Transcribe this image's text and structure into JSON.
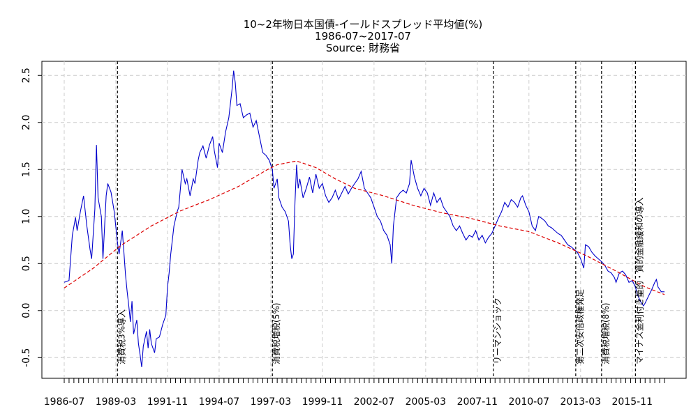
{
  "chart_data": {
    "type": "line",
    "title_lines": [
      "10~2年物日本国債-イールドスプレッド平均値(%)",
      "1986-07~2017-07",
      "Source: 財務省"
    ],
    "xlabel": "",
    "ylabel": "",
    "x_range": [
      "1986-07",
      "2017-07"
    ],
    "x_tick_labels": [
      "1986-07",
      "1989-03",
      "1991-11",
      "1994-07",
      "1997-03",
      "1999-11",
      "2002-07",
      "2005-03",
      "2007-11",
      "2010-07",
      "2013-03",
      "2015-11"
    ],
    "y_ticks": [
      -0.5,
      0.0,
      0.5,
      1.0,
      1.5,
      2.0,
      2.5
    ],
    "y_tick_labels": [
      "-0.5",
      "0.0",
      "0.5",
      "1.0",
      "1.5",
      "2.0",
      "2.5"
    ],
    "ylim": [
      -0.72,
      2.65
    ],
    "grid": true,
    "colors": {
      "series": "#0000cc",
      "trend": "#dd0000",
      "grid": "#cccccc",
      "events": "#000000"
    },
    "series": [
      {
        "style": "solid",
        "points": [
          [
            "1986-07",
            0.3
          ],
          [
            "1986-10",
            0.32
          ],
          [
            "1986-12",
            0.8
          ],
          [
            "1987-02",
            0.99
          ],
          [
            "1987-03",
            0.85
          ],
          [
            "1987-05",
            1.05
          ],
          [
            "1987-07",
            1.22
          ],
          [
            "1987-09",
            0.9
          ],
          [
            "1987-11",
            0.65
          ],
          [
            "1987-12",
            0.55
          ],
          [
            "1988-02",
            1.08
          ],
          [
            "1988-03",
            1.76
          ],
          [
            "1988-04",
            1.2
          ],
          [
            "1988-06",
            1.0
          ],
          [
            "1988-07",
            0.55
          ],
          [
            "1988-09",
            1.22
          ],
          [
            "1988-10",
            1.35
          ],
          [
            "1988-12",
            1.26
          ],
          [
            "1989-02",
            1.05
          ],
          [
            "1989-04",
            0.72
          ],
          [
            "1989-05",
            0.6
          ],
          [
            "1989-07",
            0.85
          ],
          [
            "1989-08",
            0.62
          ],
          [
            "1989-09",
            0.38
          ],
          [
            "1989-10",
            0.2
          ],
          [
            "1989-11",
            0.05
          ],
          [
            "1989-12",
            -0.12
          ],
          [
            "1990-01",
            0.1
          ],
          [
            "1990-02",
            -0.25
          ],
          [
            "1990-04",
            -0.1
          ],
          [
            "1990-05",
            -0.35
          ],
          [
            "1990-06",
            -0.47
          ],
          [
            "1990-07",
            -0.6
          ],
          [
            "1990-08",
            -0.38
          ],
          [
            "1990-10",
            -0.22
          ],
          [
            "1990-11",
            -0.4
          ],
          [
            "1990-12",
            -0.2
          ],
          [
            "1991-01",
            -0.35
          ],
          [
            "1991-03",
            -0.45
          ],
          [
            "1991-04",
            -0.3
          ],
          [
            "1991-06",
            -0.28
          ],
          [
            "1991-08",
            -0.15
          ],
          [
            "1991-10",
            -0.05
          ],
          [
            "1991-11",
            0.25
          ],
          [
            "1991-12",
            0.4
          ],
          [
            "1992-01",
            0.6
          ],
          [
            "1992-03",
            0.9
          ],
          [
            "1992-05",
            1.05
          ],
          [
            "1992-06",
            1.1
          ],
          [
            "1992-07",
            1.3
          ],
          [
            "1992-08",
            1.5
          ],
          [
            "1992-10",
            1.35
          ],
          [
            "1992-11",
            1.4
          ],
          [
            "1993-01",
            1.22
          ],
          [
            "1993-03",
            1.4
          ],
          [
            "1993-04",
            1.35
          ],
          [
            "1993-06",
            1.6
          ],
          [
            "1993-07",
            1.68
          ],
          [
            "1993-09",
            1.75
          ],
          [
            "1993-11",
            1.62
          ],
          [
            "1994-01",
            1.76
          ],
          [
            "1994-03",
            1.85
          ],
          [
            "1994-04",
            1.7
          ],
          [
            "1994-06",
            1.52
          ],
          [
            "1994-07",
            1.78
          ],
          [
            "1994-09",
            1.68
          ],
          [
            "1994-11",
            1.9
          ],
          [
            "1995-01",
            2.05
          ],
          [
            "1995-03",
            2.35
          ],
          [
            "1995-04",
            2.55
          ],
          [
            "1995-05",
            2.42
          ],
          [
            "1995-06",
            2.18
          ],
          [
            "1995-08",
            2.2
          ],
          [
            "1995-10",
            2.05
          ],
          [
            "1995-12",
            2.08
          ],
          [
            "1996-02",
            2.1
          ],
          [
            "1996-04",
            1.95
          ],
          [
            "1996-06",
            2.02
          ],
          [
            "1996-08",
            1.85
          ],
          [
            "1996-10",
            1.68
          ],
          [
            "1996-12",
            1.65
          ],
          [
            "1997-02",
            1.6
          ],
          [
            "1997-04",
            1.5
          ],
          [
            "1997-05",
            1.3
          ],
          [
            "1997-07",
            1.4
          ],
          [
            "1997-08",
            1.2
          ],
          [
            "1997-10",
            1.1
          ],
          [
            "1997-12",
            1.05
          ],
          [
            "1998-02",
            0.95
          ],
          [
            "1998-03",
            0.7
          ],
          [
            "1998-04",
            0.55
          ],
          [
            "1998-05",
            0.6
          ],
          [
            "1998-06",
            1.15
          ],
          [
            "1998-07",
            1.55
          ],
          [
            "1998-08",
            1.3
          ],
          [
            "1998-09",
            1.4
          ],
          [
            "1998-11",
            1.2
          ],
          [
            "1999-01",
            1.3
          ],
          [
            "1999-03",
            1.42
          ],
          [
            "1999-05",
            1.25
          ],
          [
            "1999-07",
            1.45
          ],
          [
            "1999-09",
            1.3
          ],
          [
            "1999-11",
            1.35
          ],
          [
            "2000-01",
            1.22
          ],
          [
            "2000-03",
            1.15
          ],
          [
            "2000-05",
            1.2
          ],
          [
            "2000-07",
            1.28
          ],
          [
            "2000-09",
            1.18
          ],
          [
            "2000-11",
            1.25
          ],
          [
            "2001-01",
            1.32
          ],
          [
            "2001-03",
            1.24
          ],
          [
            "2001-05",
            1.3
          ],
          [
            "2001-07",
            1.35
          ],
          [
            "2001-09",
            1.4
          ],
          [
            "2001-11",
            1.48
          ],
          [
            "2002-01",
            1.3
          ],
          [
            "2002-03",
            1.25
          ],
          [
            "2002-05",
            1.2
          ],
          [
            "2002-07",
            1.1
          ],
          [
            "2002-09",
            1.0
          ],
          [
            "2002-11",
            0.95
          ],
          [
            "2003-01",
            0.85
          ],
          [
            "2003-03",
            0.8
          ],
          [
            "2003-05",
            0.7
          ],
          [
            "2003-06",
            0.5
          ],
          [
            "2003-07",
            0.9
          ],
          [
            "2003-09",
            1.2
          ],
          [
            "2003-11",
            1.25
          ],
          [
            "2004-01",
            1.28
          ],
          [
            "2004-03",
            1.25
          ],
          [
            "2004-05",
            1.35
          ],
          [
            "2004-06",
            1.6
          ],
          [
            "2004-08",
            1.42
          ],
          [
            "2004-10",
            1.3
          ],
          [
            "2004-12",
            1.22
          ],
          [
            "2005-02",
            1.3
          ],
          [
            "2005-04",
            1.25
          ],
          [
            "2005-06",
            1.12
          ],
          [
            "2005-08",
            1.25
          ],
          [
            "2005-10",
            1.15
          ],
          [
            "2005-12",
            1.2
          ],
          [
            "2006-02",
            1.1
          ],
          [
            "2006-04",
            1.05
          ],
          [
            "2006-06",
            1.0
          ],
          [
            "2006-08",
            0.9
          ],
          [
            "2006-10",
            0.85
          ],
          [
            "2006-12",
            0.9
          ],
          [
            "2007-02",
            0.82
          ],
          [
            "2007-04",
            0.75
          ],
          [
            "2007-06",
            0.8
          ],
          [
            "2007-08",
            0.78
          ],
          [
            "2007-10",
            0.85
          ],
          [
            "2007-12",
            0.75
          ],
          [
            "2008-02",
            0.8
          ],
          [
            "2008-04",
            0.72
          ],
          [
            "2008-06",
            0.78
          ],
          [
            "2008-08",
            0.82
          ],
          [
            "2008-10",
            0.9
          ],
          [
            "2008-12",
            0.98
          ],
          [
            "2009-02",
            1.05
          ],
          [
            "2009-04",
            1.15
          ],
          [
            "2009-06",
            1.1
          ],
          [
            "2009-08",
            1.18
          ],
          [
            "2009-10",
            1.15
          ],
          [
            "2009-12",
            1.1
          ],
          [
            "2010-02",
            1.2
          ],
          [
            "2010-03",
            1.22
          ],
          [
            "2010-05",
            1.12
          ],
          [
            "2010-07",
            1.05
          ],
          [
            "2010-09",
            0.9
          ],
          [
            "2010-11",
            0.85
          ],
          [
            "2011-01",
            1.0
          ],
          [
            "2011-03",
            0.98
          ],
          [
            "2011-05",
            0.95
          ],
          [
            "2011-07",
            0.9
          ],
          [
            "2011-09",
            0.88
          ],
          [
            "2011-11",
            0.85
          ],
          [
            "2012-01",
            0.82
          ],
          [
            "2012-03",
            0.8
          ],
          [
            "2012-05",
            0.75
          ],
          [
            "2012-07",
            0.7
          ],
          [
            "2012-09",
            0.68
          ],
          [
            "2012-11",
            0.65
          ],
          [
            "2013-01",
            0.62
          ],
          [
            "2013-03",
            0.55
          ],
          [
            "2013-05",
            0.45
          ],
          [
            "2013-06",
            0.7
          ],
          [
            "2013-08",
            0.68
          ],
          [
            "2013-10",
            0.62
          ],
          [
            "2013-12",
            0.58
          ],
          [
            "2014-02",
            0.55
          ],
          [
            "2014-04",
            0.52
          ],
          [
            "2014-06",
            0.48
          ],
          [
            "2014-08",
            0.42
          ],
          [
            "2014-10",
            0.4
          ],
          [
            "2014-12",
            0.35
          ],
          [
            "2015-01",
            0.3
          ],
          [
            "2015-03",
            0.4
          ],
          [
            "2015-05",
            0.42
          ],
          [
            "2015-07",
            0.38
          ],
          [
            "2015-09",
            0.3
          ],
          [
            "2015-11",
            0.32
          ],
          [
            "2016-01",
            0.25
          ],
          [
            "2016-02",
            0.18
          ],
          [
            "2016-04",
            0.1
          ],
          [
            "2016-06",
            0.05
          ],
          [
            "2016-07",
            0.08
          ],
          [
            "2016-09",
            0.15
          ],
          [
            "2016-11",
            0.22
          ],
          [
            "2017-01",
            0.3
          ],
          [
            "2017-02",
            0.33
          ],
          [
            "2017-03",
            0.25
          ],
          [
            "2017-05",
            0.2
          ],
          [
            "2017-07",
            0.2
          ]
        ]
      },
      {
        "style": "dashed",
        "points": [
          [
            "1986-07",
            0.24
          ],
          [
            "1988-01",
            0.45
          ],
          [
            "1989-06",
            0.69
          ],
          [
            "1991-01",
            0.9
          ],
          [
            "1992-07",
            1.06
          ],
          [
            "1994-01",
            1.18
          ],
          [
            "1995-07",
            1.32
          ],
          [
            "1997-01",
            1.5
          ],
          [
            "1997-07",
            1.55
          ],
          [
            "1998-07",
            1.59
          ],
          [
            "1999-07",
            1.52
          ],
          [
            "2000-07",
            1.4
          ],
          [
            "2001-07",
            1.3
          ],
          [
            "2003-01",
            1.22
          ],
          [
            "2004-07",
            1.12
          ],
          [
            "2006-01",
            1.04
          ],
          [
            "2007-07",
            0.98
          ],
          [
            "2009-01",
            0.9
          ],
          [
            "2010-07",
            0.84
          ],
          [
            "2012-01",
            0.72
          ],
          [
            "2013-07",
            0.58
          ],
          [
            "2015-01",
            0.42
          ],
          [
            "2016-07",
            0.25
          ],
          [
            "2017-07",
            0.17
          ]
        ]
      }
    ],
    "events": [
      {
        "date": "1989-04",
        "label": "消費税3%導入"
      },
      {
        "date": "1997-04",
        "label": "消費税増税(5%)"
      },
      {
        "date": "2008-09",
        "label": "リーマンショック"
      },
      {
        "date": "2012-12",
        "label": "第二次安倍政権発足"
      },
      {
        "date": "2014-04",
        "label": "消費税増税(8%)"
      },
      {
        "date": "2016-01",
        "label": "マイナス金利付き量的・質的金融緩和の導入"
      }
    ]
  }
}
